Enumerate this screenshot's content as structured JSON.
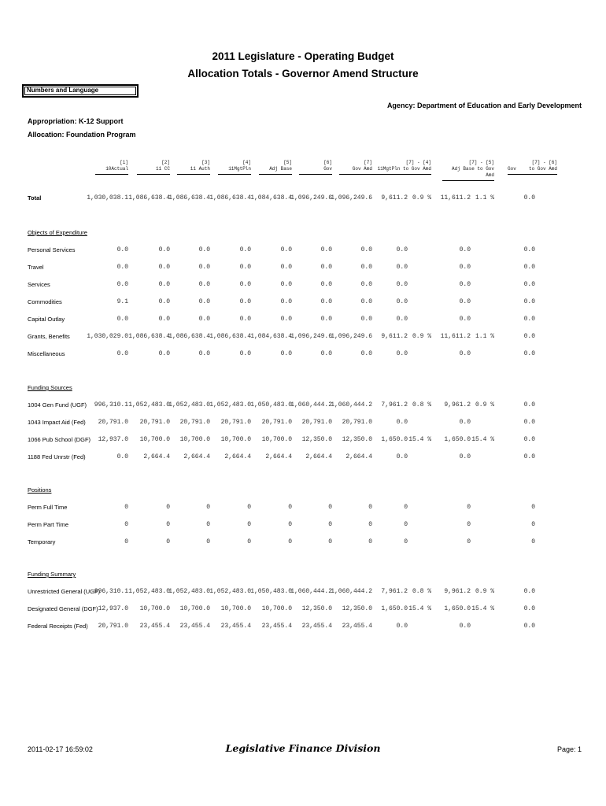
{
  "title": {
    "line1": "2011 Legislature - Operating Budget",
    "line2": "Allocation Totals - Governor Amend Structure"
  },
  "filter_label": "Numbers and Language",
  "agency_line": "Agency: Department of Education and Early Development",
  "appropriation_line": "Appropriation: K-12 Support",
  "allocation_line": "Allocation: Foundation Program",
  "table": {
    "columns": [
      {
        "num": "[1]",
        "name": "10Actual"
      },
      {
        "num": "[2]",
        "name": "11 CC"
      },
      {
        "num": "[3]",
        "name": "11 Auth"
      },
      {
        "num": "[4]",
        "name": "11MgtPln"
      },
      {
        "num": "[5]",
        "name": "Adj Base"
      },
      {
        "num": "[6]",
        "name": "Gov"
      },
      {
        "num": "[7]",
        "name": "Gov Amd"
      },
      {
        "num": "[7] - [4]",
        "name": "11MgtPln to Gov Amd"
      },
      {
        "num": "[7] - [5]",
        "name": "Adj Base to Gov Amd"
      },
      {
        "num": "[7] - [6]",
        "name": "Gov to Gov Amd",
        "name_parts": [
          "Gov",
          "to Gov Amd"
        ]
      }
    ],
    "total": {
      "label": "Total",
      "values": [
        "1,030,038.1",
        "1,086,638.4",
        "1,086,638.4",
        "1,086,638.4",
        "1,084,638.4",
        "1,096,249.6",
        "1,096,249.6",
        "9,611.2",
        "0.9 %",
        "11,611.2",
        "1.1 %",
        "0.0"
      ]
    },
    "sections": [
      {
        "heading": "Objects of Expenditure",
        "rows": [
          {
            "label": "Personal Services",
            "values": [
              "0.0",
              "0.0",
              "0.0",
              "0.0",
              "0.0",
              "0.0",
              "0.0",
              "0.0",
              "",
              "0.0",
              "",
              "0.0"
            ]
          },
          {
            "label": "Travel",
            "values": [
              "0.0",
              "0.0",
              "0.0",
              "0.0",
              "0.0",
              "0.0",
              "0.0",
              "0.0",
              "",
              "0.0",
              "",
              "0.0"
            ]
          },
          {
            "label": "Services",
            "values": [
              "0.0",
              "0.0",
              "0.0",
              "0.0",
              "0.0",
              "0.0",
              "0.0",
              "0.0",
              "",
              "0.0",
              "",
              "0.0"
            ]
          },
          {
            "label": "Commodities",
            "values": [
              "9.1",
              "0.0",
              "0.0",
              "0.0",
              "0.0",
              "0.0",
              "0.0",
              "0.0",
              "",
              "0.0",
              "",
              "0.0"
            ]
          },
          {
            "label": "Capital Outlay",
            "values": [
              "0.0",
              "0.0",
              "0.0",
              "0.0",
              "0.0",
              "0.0",
              "0.0",
              "0.0",
              "",
              "0.0",
              "",
              "0.0"
            ]
          },
          {
            "label": "Grants, Benefits",
            "values": [
              "1,030,029.0",
              "1,086,638.4",
              "1,086,638.4",
              "1,086,638.4",
              "1,084,638.4",
              "1,096,249.6",
              "1,096,249.6",
              "9,611.2",
              "0.9 %",
              "11,611.2",
              "1.1 %",
              "0.0"
            ]
          },
          {
            "label": "Miscellaneous",
            "values": [
              "0.0",
              "0.0",
              "0.0",
              "0.0",
              "0.0",
              "0.0",
              "0.0",
              "0.0",
              "",
              "0.0",
              "",
              "0.0"
            ]
          }
        ]
      },
      {
        "heading": "Funding Sources",
        "rows": [
          {
            "label": "1004 Gen Fund (UGF)",
            "values": [
              "996,310.1",
              "1,052,483.0",
              "1,052,483.0",
              "1,052,483.0",
              "1,050,483.0",
              "1,060,444.2",
              "1,060,444.2",
              "7,961.2",
              "0.8 %",
              "9,961.2",
              "0.9 %",
              "0.0"
            ]
          },
          {
            "label": "1043 Impact Aid (Fed)",
            "values": [
              "20,791.0",
              "20,791.0",
              "20,791.0",
              "20,791.0",
              "20,791.0",
              "20,791.0",
              "20,791.0",
              "0.0",
              "",
              "0.0",
              "",
              "0.0"
            ]
          },
          {
            "label": "1066 Pub School (DGF)",
            "values": [
              "12,937.0",
              "10,700.0",
              "10,700.0",
              "10,700.0",
              "10,700.0",
              "12,350.0",
              "12,350.0",
              "1,650.0",
              "15.4 %",
              "1,650.0",
              "15.4 %",
              "0.0"
            ]
          },
          {
            "label": "1188 Fed Unrstr (Fed)",
            "values": [
              "0.0",
              "2,664.4",
              "2,664.4",
              "2,664.4",
              "2,664.4",
              "2,664.4",
              "2,664.4",
              "0.0",
              "",
              "0.0",
              "",
              "0.0"
            ]
          }
        ]
      },
      {
        "heading": "Positions",
        "rows": [
          {
            "label": "Perm Full Time",
            "values": [
              "0",
              "0",
              "0",
              "0",
              "0",
              "0",
              "0",
              "0",
              "",
              "0",
              "",
              "0"
            ]
          },
          {
            "label": "Perm Part Time",
            "values": [
              "0",
              "0",
              "0",
              "0",
              "0",
              "0",
              "0",
              "0",
              "",
              "0",
              "",
              "0"
            ]
          },
          {
            "label": "Temporary",
            "values": [
              "0",
              "0",
              "0",
              "0",
              "0",
              "0",
              "0",
              "0",
              "",
              "0",
              "",
              "0"
            ]
          }
        ]
      },
      {
        "heading": "Funding Summary",
        "rows": [
          {
            "label": "Unrestricted General (UGF)",
            "values": [
              "996,310.1",
              "1,052,483.0",
              "1,052,483.0",
              "1,052,483.0",
              "1,050,483.0",
              "1,060,444.2",
              "1,060,444.2",
              "7,961.2",
              "0.8 %",
              "9,961.2",
              "0.9 %",
              "0.0"
            ]
          },
          {
            "label": "Designated General (DGF)",
            "values": [
              "12,937.0",
              "10,700.0",
              "10,700.0",
              "10,700.0",
              "10,700.0",
              "12,350.0",
              "12,350.0",
              "1,650.0",
              "15.4 %",
              "1,650.0",
              "15.4 %",
              "0.0"
            ]
          },
          {
            "label": "Federal Receipts (Fed)",
            "values": [
              "20,791.0",
              "23,455.4",
              "23,455.4",
              "23,455.4",
              "23,455.4",
              "23,455.4",
              "23,455.4",
              "0.0",
              "",
              "0.0",
              "",
              "0.0"
            ]
          }
        ]
      }
    ]
  },
  "footer": {
    "timestamp": "2011-02-17 16:59:02",
    "division": "Legislative Finance Division",
    "page": "Page: 1"
  }
}
